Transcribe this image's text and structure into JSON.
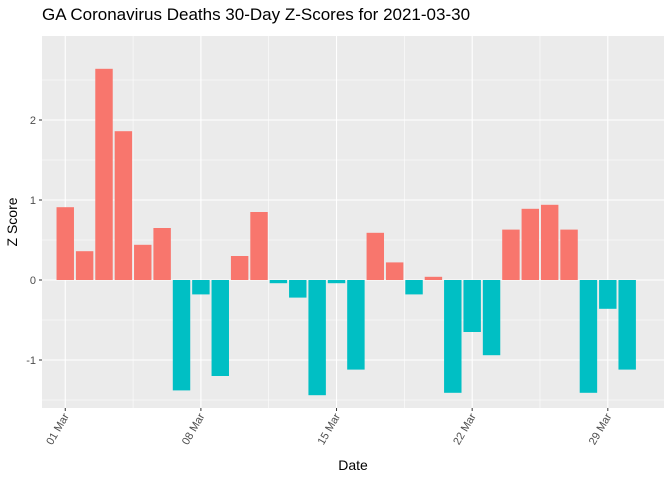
{
  "chart_data": {
    "type": "bar",
    "title": "GA Coronavirus Deaths 30-Day Z-Scores for 2021-03-30",
    "xlabel": "Date",
    "ylabel": "Z Score",
    "x_tick_labels": [
      "01 Mar",
      "08 Mar",
      "15 Mar",
      "22 Mar",
      "29 Mar"
    ],
    "x_tick_days": [
      1,
      8,
      15,
      22,
      29
    ],
    "y_ticks": [
      -1,
      0,
      1,
      2
    ],
    "xlim": [
      -0.2,
      31.9
    ],
    "ylim": [
      -1.6,
      3.05
    ],
    "positive_color": "#F8766D",
    "negative_color": "#00BFC4",
    "panel_color": "#EBEBEB",
    "grid_color": "#FFFFFF",
    "days": [
      1,
      2,
      3,
      4,
      5,
      6,
      7,
      8,
      9,
      10,
      11,
      12,
      13,
      14,
      15,
      16,
      17,
      18,
      19,
      20,
      21,
      22,
      23,
      24,
      25,
      26,
      27,
      28,
      29,
      30
    ],
    "values": [
      0.91,
      0.36,
      2.64,
      1.86,
      0.44,
      0.65,
      -1.38,
      -0.18,
      -1.2,
      0.3,
      0.85,
      -0.04,
      -0.22,
      -1.44,
      -0.04,
      -1.12,
      0.59,
      0.22,
      -0.18,
      0.04,
      -1.41,
      -0.65,
      -0.94,
      0.63,
      0.89,
      0.94,
      0.63,
      -1.41,
      -0.36,
      -1.12
    ]
  }
}
